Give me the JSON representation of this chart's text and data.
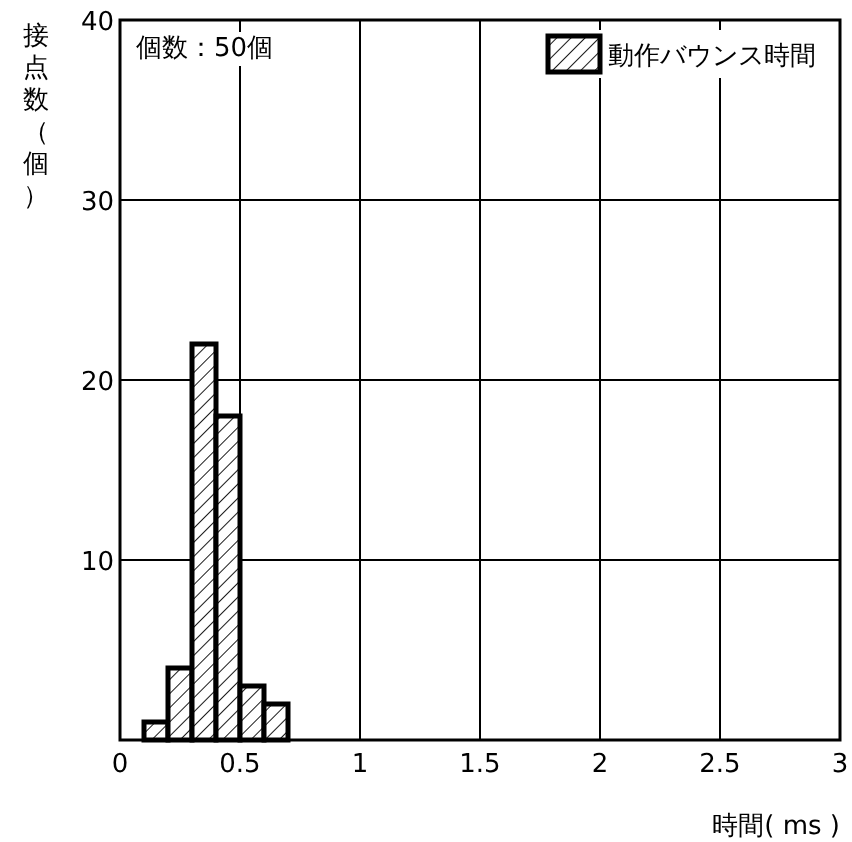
{
  "chart_data": {
    "type": "histogram",
    "xlabel": "時間( ms )",
    "ylabel": "接点数（個）",
    "annotations": [
      "個数：50個"
    ],
    "bins": [
      0.1,
      0.2,
      0.3,
      0.4,
      0.5,
      0.6,
      0.7
    ],
    "series": [
      {
        "name": "動作バウンス時間",
        "color": "#000000",
        "values": [
          1,
          4,
          22,
          18,
          3,
          2
        ]
      }
    ],
    "xlim": [
      0,
      3
    ],
    "xticks": [
      0,
      0.5,
      1,
      1.5,
      2,
      2.5,
      3
    ],
    "ylim": [
      0,
      40
    ],
    "yticks": [
      10,
      20,
      30,
      40
    ],
    "grid": true,
    "legend": "top right"
  }
}
